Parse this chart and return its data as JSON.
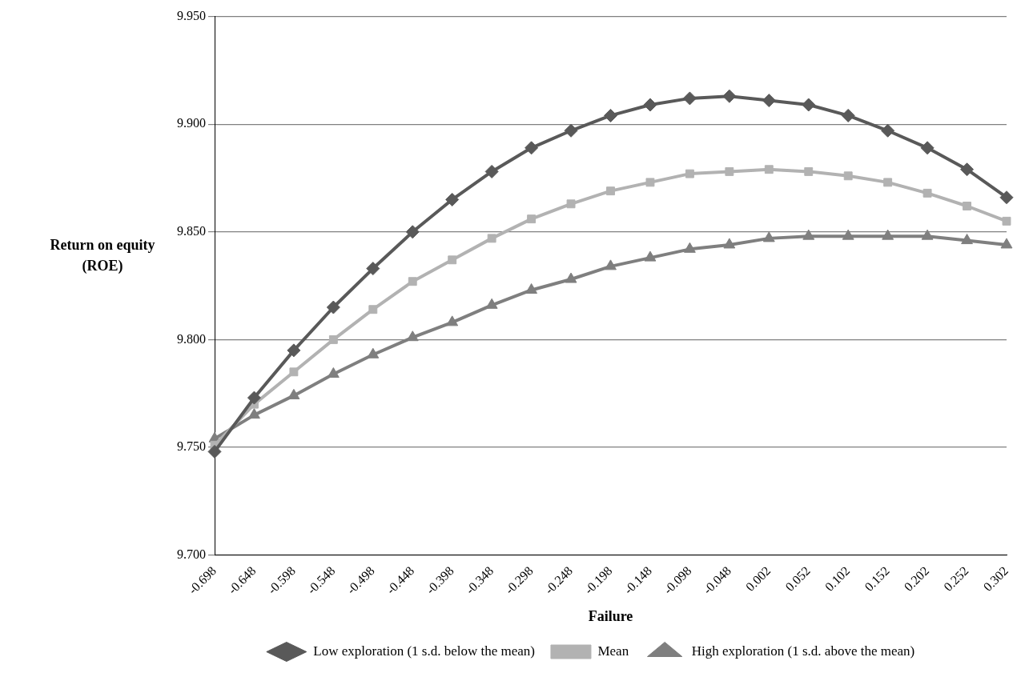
{
  "chart_data": {
    "type": "line",
    "xlabel": "Failure",
    "ylabel": "Return on equity (ROE)",
    "categories": [
      "-0.698",
      "-0.648",
      "-0.598",
      "-0.548",
      "-0.498",
      "-0.448",
      "-0.398",
      "-0.348",
      "-0.298",
      "-0.248",
      "-0.198",
      "-0.148",
      "-0.098",
      "-0.048",
      "0.002",
      "0.052",
      "0.102",
      "0.152",
      "0.202",
      "0.252",
      "0.302"
    ],
    "series": [
      {
        "name": "Low exploration (1 s.d. below the mean)",
        "color": "#595959",
        "marker": "diamond",
        "values": [
          9.748,
          9.773,
          9.795,
          9.815,
          9.833,
          9.85,
          9.865,
          9.878,
          9.889,
          9.897,
          9.904,
          9.909,
          9.912,
          9.913,
          9.911,
          9.909,
          9.904,
          9.897,
          9.889,
          9.879,
          9.866
        ]
      },
      {
        "name": "Mean",
        "color": "#b2b2b2",
        "marker": "square",
        "values": [
          9.751,
          9.77,
          9.785,
          9.8,
          9.814,
          9.827,
          9.837,
          9.847,
          9.856,
          9.863,
          9.869,
          9.873,
          9.877,
          9.878,
          9.879,
          9.878,
          9.876,
          9.873,
          9.868,
          9.862,
          9.855
        ]
      },
      {
        "name": "High exploration (1 s.d. above the mean)",
        "color": "#7f7f7f",
        "marker": "triangle",
        "values": [
          9.754,
          9.765,
          9.774,
          9.784,
          9.793,
          9.801,
          9.808,
          9.816,
          9.823,
          9.828,
          9.834,
          9.838,
          9.842,
          9.844,
          9.847,
          9.848,
          9.848,
          9.848,
          9.848,
          9.846,
          9.844
        ]
      }
    ],
    "ylim": [
      9.7,
      9.95
    ],
    "yticks": [
      {
        "value": 9.7,
        "label": "9.700"
      },
      {
        "value": 9.75,
        "label": "9.750"
      },
      {
        "value": 9.8,
        "label": "9.800"
      },
      {
        "value": 9.85,
        "label": "9.850"
      },
      {
        "value": 9.9,
        "label": "9.900"
      },
      {
        "value": 9.95,
        "label": "9.950"
      }
    ],
    "grid": "y",
    "legend": "bottom",
    "line_style": "solid"
  }
}
